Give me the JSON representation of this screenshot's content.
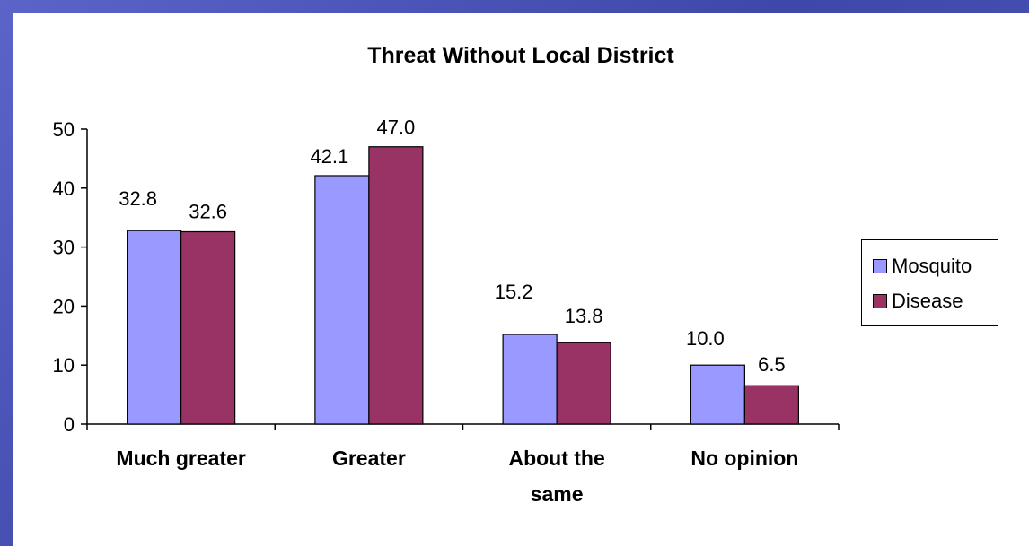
{
  "chart_data": {
    "type": "bar",
    "title": "Threat Without Local District",
    "xlabel": "",
    "ylabel": "",
    "ylim": [
      0,
      50
    ],
    "yticks": [
      0,
      10,
      20,
      30,
      40,
      50
    ],
    "categories": [
      "Much greater",
      "Greater",
      "About the same",
      "No opinion"
    ],
    "series": [
      {
        "name": "Mosquito",
        "values": [
          32.8,
          42.1,
          15.2,
          10.0
        ],
        "labels": [
          "32.8",
          "42.1",
          "15.2",
          "10.0"
        ],
        "color": "#9999ff"
      },
      {
        "name": "Disease",
        "values": [
          32.6,
          47.0,
          13.8,
          6.5
        ],
        "labels": [
          "32.6",
          "47.0",
          "13.8",
          "6.5"
        ],
        "color": "#993366"
      }
    ],
    "grid": false,
    "legend": "right"
  }
}
